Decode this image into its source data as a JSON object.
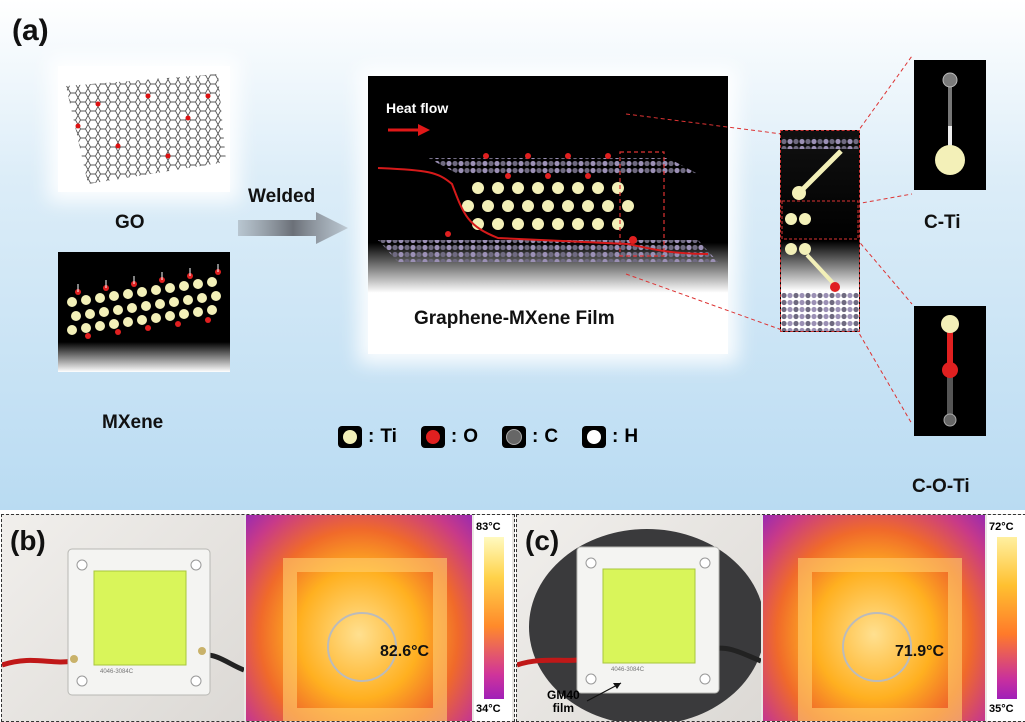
{
  "panel_a": {
    "tag": "(a)",
    "go_label": "GO",
    "mxene_label": "MXene",
    "welded_label": "Welded",
    "heat_flow_label": "Heat flow",
    "film_label": "Graphene-MXene Film",
    "cti_label": "C-Ti",
    "coti_label": "C-O-Ti",
    "legend": [
      {
        "symbol": ":",
        "label": "Ti",
        "color": "#f3f0b8"
      },
      {
        "symbol": ":",
        "label": "O",
        "color": "#e02020"
      },
      {
        "symbol": ":",
        "label": "C",
        "color": "#555555"
      },
      {
        "symbol": ":",
        "label": "H",
        "color": "#ffffff"
      }
    ]
  },
  "panel_b": {
    "tag": "(b)",
    "chip_code": "4046-3084C",
    "temp_reading": "82.6°C",
    "scale_max": "83°C",
    "scale_min": "34°C"
  },
  "panel_c": {
    "tag": "(c)",
    "chip_code": "4046-3084C",
    "temp_reading": "71.9°C",
    "scale_max": "72°C",
    "scale_min": "35°C",
    "film_label_1": "GM40",
    "film_label_2": "film"
  }
}
